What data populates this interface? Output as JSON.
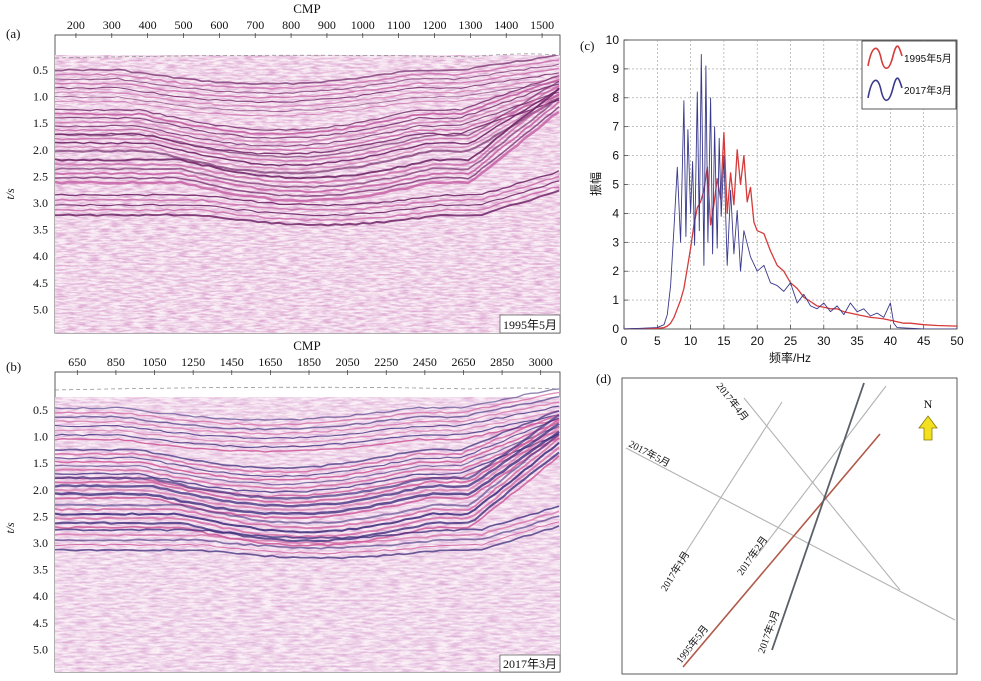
{
  "panels": {
    "a": {
      "label": "(a)",
      "axis_top_title": "CMP",
      "cmp_ticks": [
        "200",
        "300",
        "400",
        "500",
        "600",
        "700",
        "800",
        "900",
        "1000",
        "1100",
        "1200",
        "1300",
        "1400",
        "1500"
      ],
      "ylabel": "t/s",
      "time_ticks": [
        "0.5",
        "1.0",
        "1.5",
        "2.0",
        "2.5",
        "3.0",
        "3.5",
        "4.0",
        "4.5",
        "5.0"
      ],
      "stamp": "1995年5月",
      "palette": {
        "trough": "#6a1f62",
        "peak": "#c25aa0",
        "paper": "#fbf1f7"
      }
    },
    "b": {
      "label": "(b)",
      "axis_top_title": "CMP",
      "cmp_ticks": [
        "650",
        "850",
        "1050",
        "1250",
        "1450",
        "1650",
        "1850",
        "2050",
        "2250",
        "2450",
        "2650",
        "2850",
        "3000"
      ],
      "ylabel": "t/s",
      "time_ticks": [
        "0.5",
        "1.0",
        "1.5",
        "2.0",
        "2.5",
        "3.0",
        "3.5",
        "4.0",
        "4.5",
        "5.0"
      ],
      "stamp": "2017年3月",
      "palette": {
        "trough": "#3b2a7a",
        "peak": "#cf5a9a",
        "paper": "#fbf1f7"
      }
    },
    "c": {
      "label": "(c)"
    },
    "d": {
      "label": "(d)",
      "north_label": "N",
      "lines": [
        {
          "label": "2017年4月",
          "color": "#b3b3b3"
        },
        {
          "label": "2017年5月",
          "color": "#b3b3b3"
        },
        {
          "label": "2017年1月",
          "color": "#b3b3b3"
        },
        {
          "label": "2017年2月",
          "color": "#b3b3b3"
        },
        {
          "label": "1995年5月",
          "color": "#b05a4a"
        },
        {
          "label": "2017年3月",
          "color": "#5a5f68"
        }
      ],
      "arrow_color": "#f2e021"
    }
  },
  "chart_data": {
    "type": "line",
    "xlabel": "频率/Hz",
    "ylabel": "振幅",
    "xlim": [
      0,
      50
    ],
    "ylim": [
      0,
      10
    ],
    "xticks": [
      0,
      5,
      10,
      15,
      20,
      25,
      30,
      35,
      40,
      45,
      50
    ],
    "yticks": [
      0,
      1,
      2,
      3,
      4,
      5,
      6,
      7,
      8,
      9,
      10
    ],
    "grid": true,
    "legend_position": "top-right",
    "series": [
      {
        "name": "1995年5月",
        "color": "#d63a3a",
        "x": [
          0,
          5,
          6,
          6.5,
          7,
          7.5,
          8,
          8.5,
          9,
          9.5,
          10,
          10.5,
          11,
          11.5,
          12,
          12.5,
          13,
          13.5,
          14,
          14.5,
          15,
          15.5,
          16,
          16.5,
          17,
          17.5,
          18,
          18.5,
          19,
          19.5,
          20,
          21,
          22,
          23,
          24,
          25,
          26,
          27,
          28,
          29,
          30,
          31,
          32,
          33,
          34,
          35,
          36,
          37,
          38,
          39,
          40,
          41,
          42,
          43,
          45,
          47,
          50
        ],
        "y": [
          0,
          0.02,
          0.05,
          0.1,
          0.2,
          0.4,
          0.7,
          1.0,
          1.4,
          2.1,
          2.8,
          3.6,
          4.2,
          4.4,
          4.8,
          5.6,
          3.6,
          4.3,
          5.2,
          4.5,
          6.8,
          4.0,
          5.4,
          4.3,
          6.2,
          5.0,
          6.0,
          4.4,
          4.9,
          3.7,
          3.4,
          3.3,
          2.7,
          2.2,
          2.0,
          1.6,
          1.4,
          1.1,
          0.95,
          0.8,
          0.75,
          0.7,
          0.7,
          0.6,
          0.55,
          0.5,
          0.45,
          0.4,
          0.38,
          0.35,
          0.3,
          0.25,
          0.2,
          0.2,
          0.15,
          0.12,
          0.1
        ]
      },
      {
        "name": "2017年3月",
        "color": "#3a3a8c",
        "x": [
          0,
          5,
          6,
          6.5,
          7,
          7.5,
          8,
          8.5,
          9,
          9.3,
          9.6,
          10,
          10.3,
          10.6,
          11,
          11.3,
          11.6,
          12,
          12.3,
          12.6,
          13,
          13.3,
          13.6,
          14,
          14.3,
          14.6,
          15,
          15.5,
          16,
          16.5,
          17,
          17.5,
          18,
          19,
          20,
          21,
          22,
          23,
          24,
          25,
          26,
          27,
          28,
          29,
          30,
          31,
          32,
          33,
          34,
          35,
          36,
          37,
          38,
          39,
          40,
          40.5,
          41,
          45,
          50
        ],
        "y": [
          0,
          0.05,
          0.15,
          0.5,
          1.5,
          3.5,
          5.6,
          3.0,
          7.9,
          3.2,
          6.9,
          4.0,
          5.8,
          2.9,
          8.2,
          3.4,
          9.5,
          2.2,
          9.1,
          3.0,
          8.0,
          2.6,
          7.0,
          2.8,
          6.6,
          3.9,
          6.0,
          2.2,
          4.8,
          2.6,
          4.1,
          2.0,
          3.4,
          2.5,
          2.0,
          2.2,
          1.6,
          1.5,
          1.3,
          1.6,
          0.9,
          1.2,
          0.8,
          0.7,
          0.9,
          0.6,
          0.8,
          0.5,
          0.9,
          0.6,
          0.7,
          0.45,
          0.55,
          0.4,
          0.9,
          0.2,
          0.05,
          0.0,
          0.0
        ]
      }
    ]
  }
}
